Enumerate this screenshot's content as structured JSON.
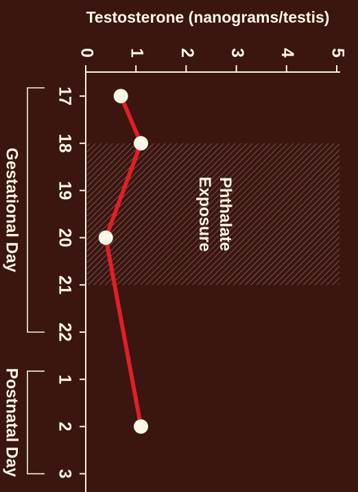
{
  "chart_data": {
    "type": "line",
    "ylabel": "Testosterone (nanograms/testis)",
    "ylim": [
      0,
      5
    ],
    "yticks": [
      "0",
      "1",
      "2",
      "3",
      "4",
      "5"
    ],
    "categories": [
      "17",
      "18",
      "19",
      "20",
      "21",
      "22",
      "1",
      "2",
      "3"
    ],
    "groups": [
      {
        "label": "Gestational  Day",
        "from": 0,
        "to": 5
      },
      {
        "label": "Postnatal Day",
        "from": 6,
        "to": 8
      }
    ],
    "series": [
      {
        "points": [
          {
            "category": "17",
            "value": 0.7
          },
          {
            "category": "18",
            "value": 1.1
          },
          {
            "category": "20",
            "value": 0.4
          },
          {
            "category": "2",
            "value": 1.1
          }
        ]
      }
    ],
    "annotation": {
      "lines": [
        "Phthalate",
        "Exposure"
      ],
      "from": "18",
      "to": "21"
    },
    "colors": {
      "background": "#3b1510",
      "line": "#e01f26",
      "marker": "#fbf6e6",
      "text": "#fbf6e6"
    }
  }
}
